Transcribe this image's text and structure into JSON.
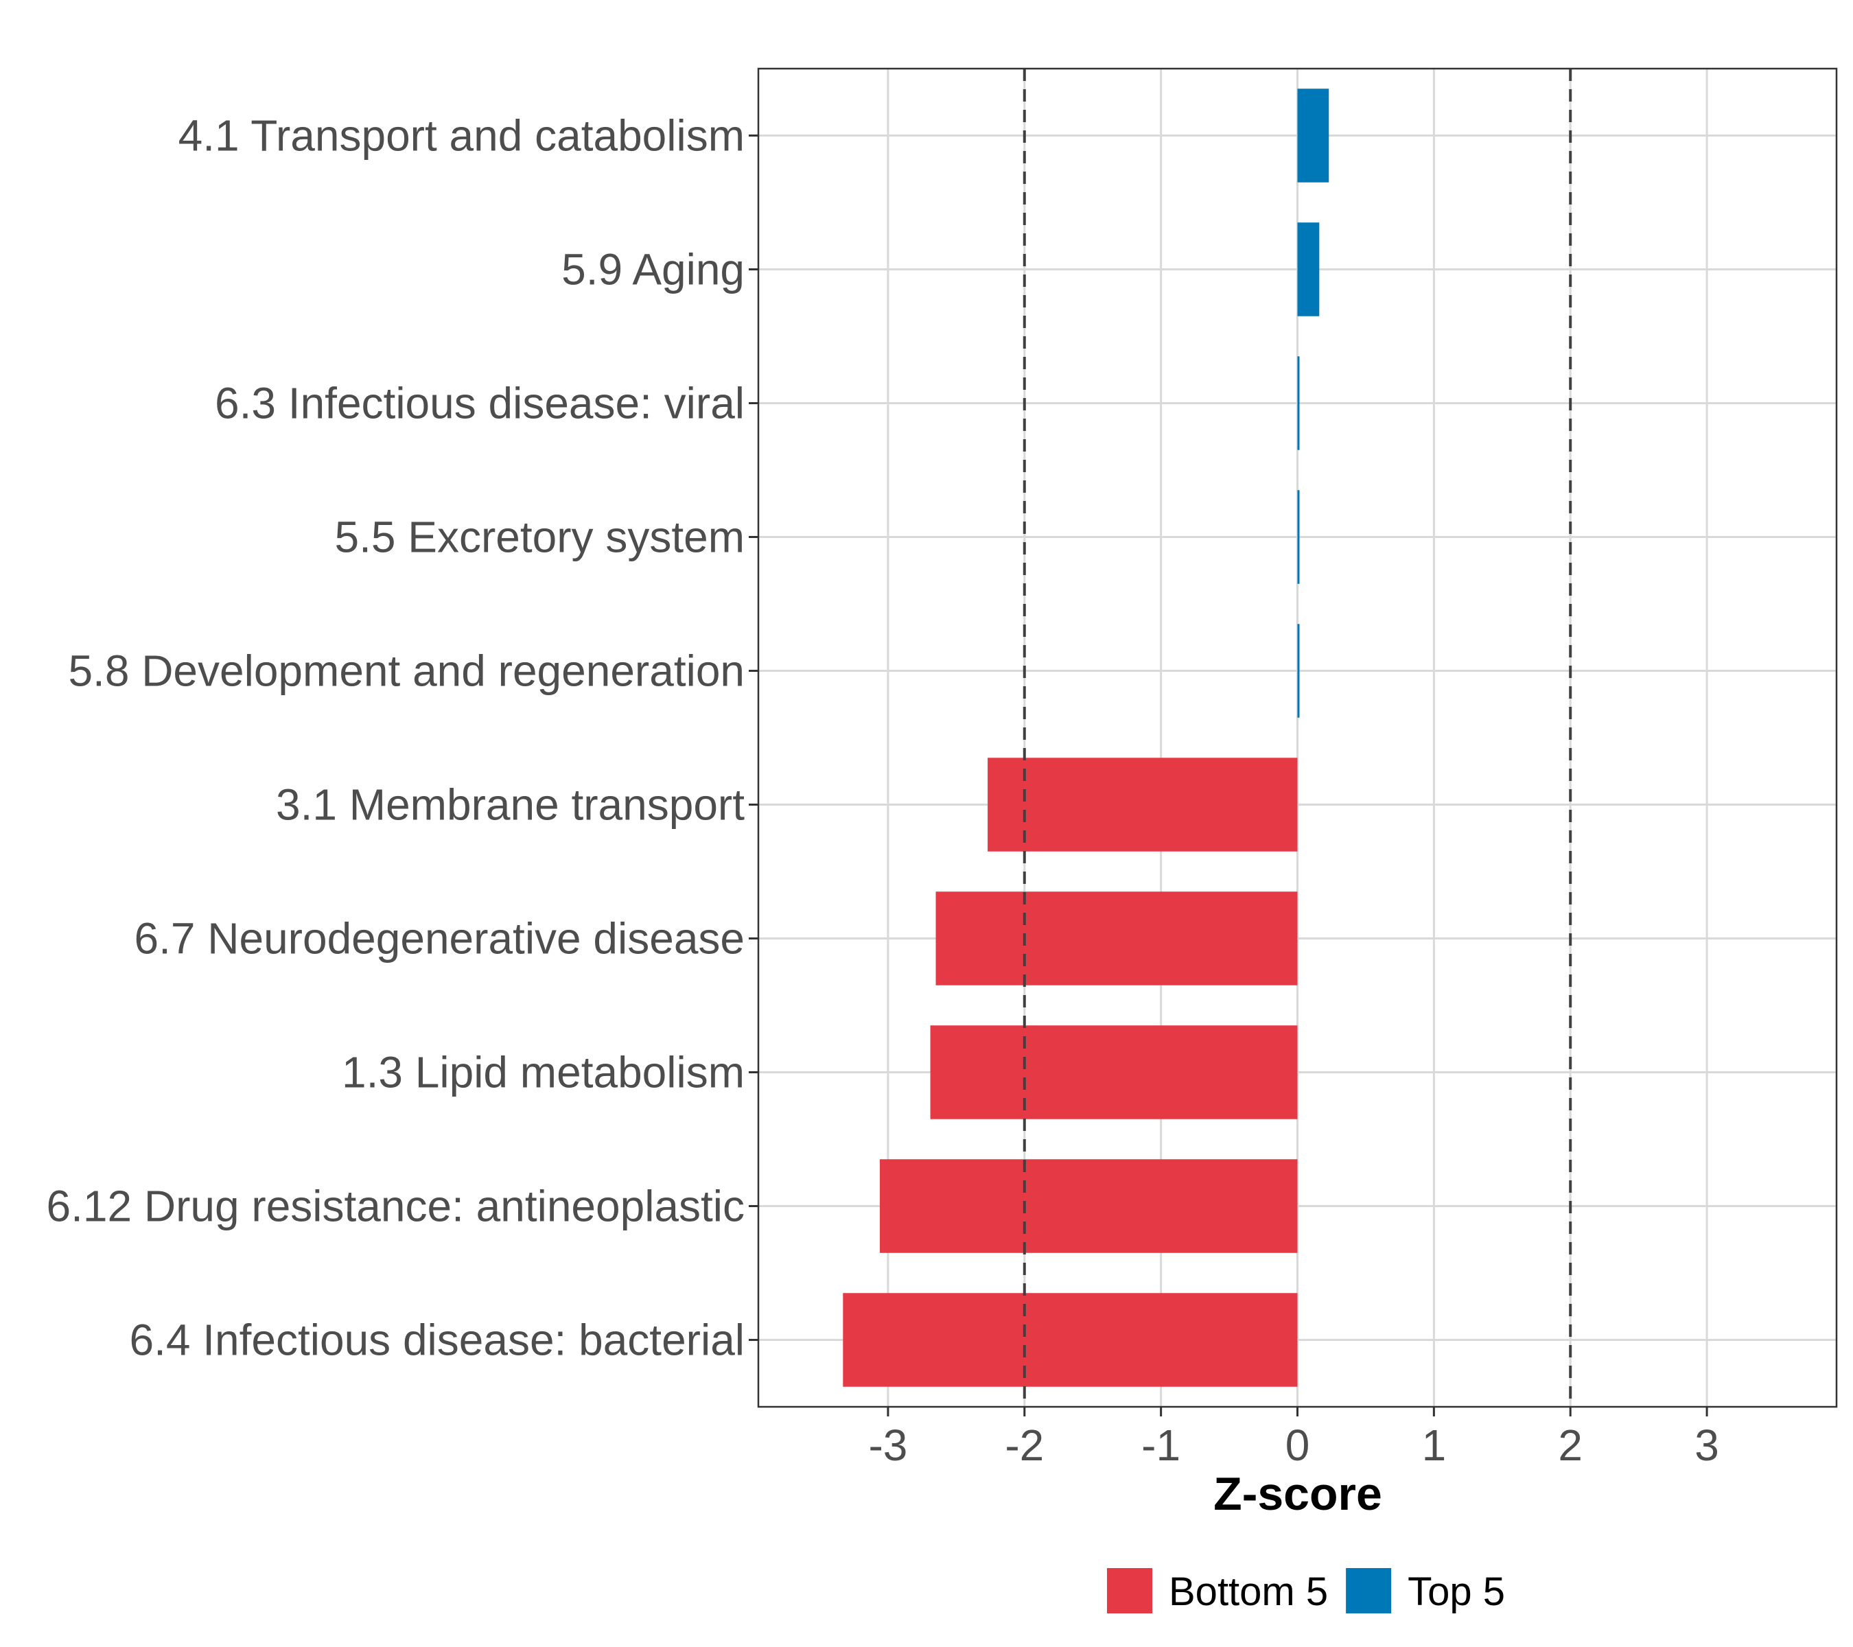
{
  "chart_data": {
    "type": "bar",
    "orientation": "horizontal",
    "title": "",
    "xlabel": "Z-score",
    "ylabel": "",
    "xlim": [
      -3.95,
      3.95
    ],
    "xticks": [
      -3,
      -2,
      -1,
      0,
      1,
      2,
      3
    ],
    "xtick_labels": [
      "-3",
      "-2",
      "-1",
      "0",
      "1",
      "2",
      "3"
    ],
    "grid": true,
    "reference_lines": [
      -2,
      2
    ],
    "categories": [
      "4.1 Transport and catabolism",
      "5.9 Aging",
      "6.3 Infectious disease: viral",
      "5.5 Excretory system",
      "5.8 Development and regeneration",
      "3.1 Membrane transport",
      "6.7 Neurodegenerative disease",
      "1.3 Lipid metabolism",
      "6.12 Drug resistance: antineoplastic",
      "6.4 Infectious disease: bacterial"
    ],
    "values": [
      0.23,
      0.16,
      0.01,
      0.01,
      0.01,
      -2.27,
      -2.65,
      -2.69,
      -3.06,
      -3.33
    ],
    "groups": [
      "Top 5",
      "Top 5",
      "Top 5",
      "Top 5",
      "Top 5",
      "Bottom 5",
      "Bottom 5",
      "Bottom 5",
      "Bottom 5",
      "Bottom 5"
    ],
    "legend": {
      "placement": "bottom",
      "entries": [
        {
          "label": "Bottom 5",
          "color": "#E63946"
        },
        {
          "label": "Top 5",
          "color": "#0077B6"
        }
      ]
    }
  }
}
